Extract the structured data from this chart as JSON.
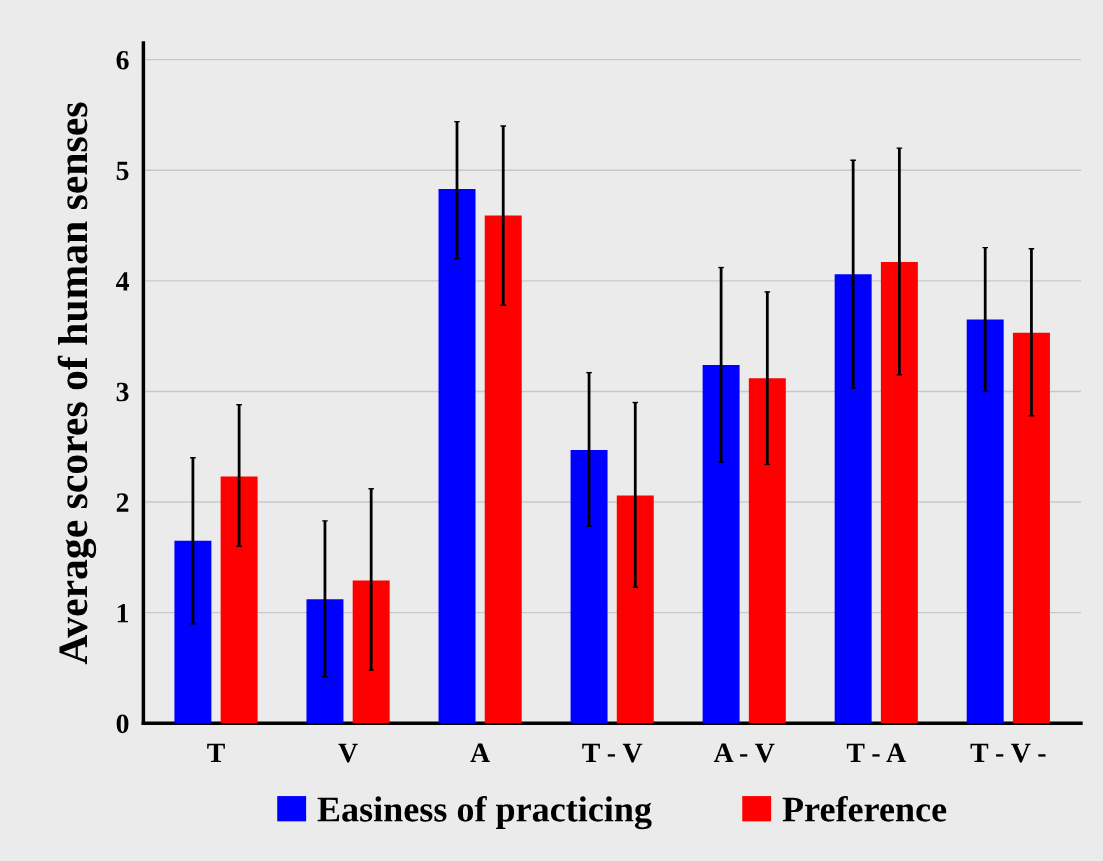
{
  "chart_data": {
    "type": "bar",
    "ylabel": "Average scores of human senses",
    "categories": [
      "T",
      "V",
      "A",
      "T - V",
      "A - V",
      "T - A",
      "T - V -"
    ],
    "series": [
      {
        "name": "Easiness of practicing",
        "color": "#0000ff",
        "values": [
          1.65,
          1.12,
          4.83,
          2.47,
          3.24,
          4.06,
          3.65
        ],
        "errors": [
          [
            0.9,
            2.4
          ],
          [
            0.42,
            1.83
          ],
          [
            4.2,
            5.44
          ],
          [
            1.78,
            3.17
          ],
          [
            2.36,
            4.12
          ],
          [
            3.03,
            5.09
          ],
          [
            3.0,
            4.3
          ]
        ]
      },
      {
        "name": "Preference",
        "color": "#ff0000",
        "values": [
          2.23,
          1.29,
          4.59,
          2.06,
          3.12,
          4.17,
          3.53
        ],
        "errors": [
          [
            1.6,
            2.88
          ],
          [
            0.48,
            2.12
          ],
          [
            3.78,
            5.4
          ],
          [
            1.23,
            2.9
          ],
          [
            2.34,
            3.9
          ],
          [
            3.15,
            5.2
          ],
          [
            2.78,
            4.29
          ]
        ]
      }
    ],
    "ylim": [
      0,
      6.15
    ],
    "yticks": [
      0,
      1,
      2,
      3,
      4,
      5,
      6
    ],
    "grid": "y",
    "legend": "bottom"
  }
}
